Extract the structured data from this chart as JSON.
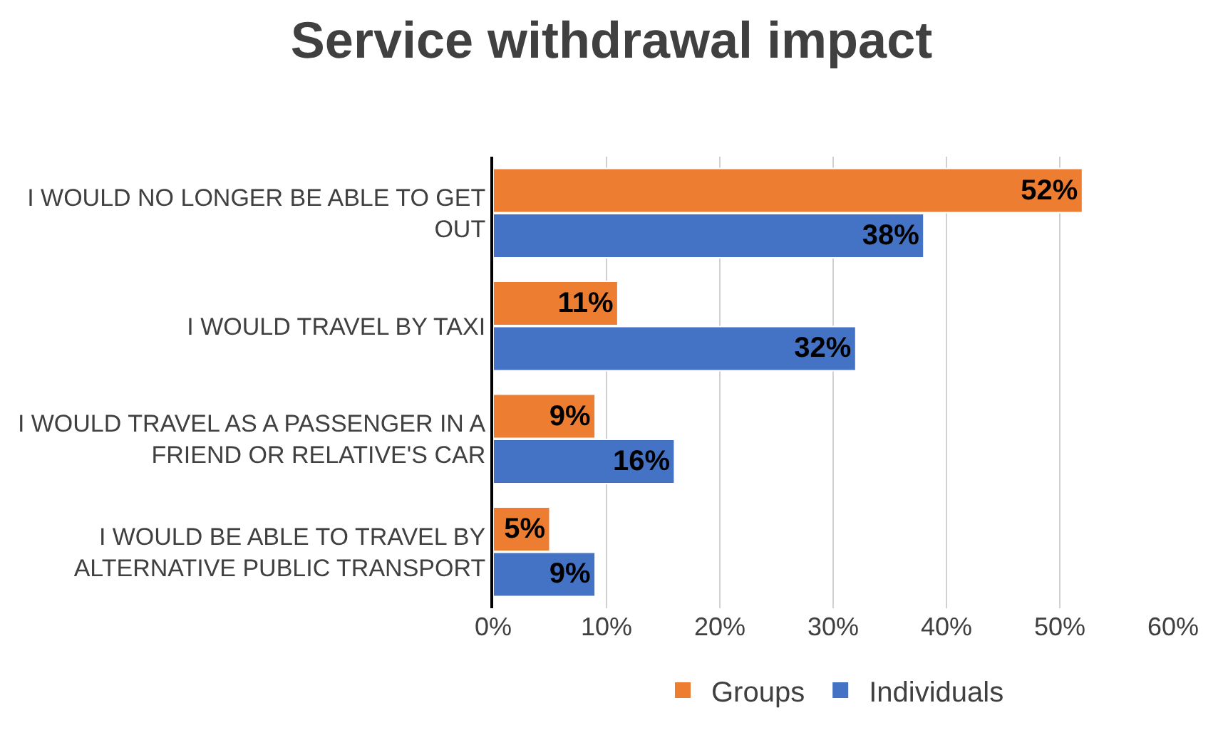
{
  "chart_data": {
    "type": "bar",
    "orientation": "horizontal",
    "title": "Service withdrawal impact",
    "categories": [
      "I WOULD NO LONGER BE ABLE TO GET OUT",
      "I WOULD TRAVEL BY TAXI",
      "I WOULD TRAVEL AS A PASSENGER IN A FRIEND OR RELATIVE'S CAR",
      "I WOULD BE ABLE TO TRAVEL BY ALTERNATIVE PUBLIC TRANSPORT"
    ],
    "series": [
      {
        "name": "Groups",
        "color": "#ed7d31",
        "values": [
          52,
          11,
          9,
          5
        ],
        "value_labels": [
          "52%",
          "11%",
          "9%",
          "5%"
        ]
      },
      {
        "name": "Individuals",
        "color": "#4472c4",
        "values": [
          38,
          32,
          16,
          9
        ],
        "value_labels": [
          "38%",
          "32%",
          "16%",
          "9%"
        ]
      }
    ],
    "xlim": [
      0,
      60
    ],
    "xticks": [
      {
        "value": 0,
        "label": "0%"
      },
      {
        "value": 10,
        "label": "10%"
      },
      {
        "value": 20,
        "label": "20%"
      },
      {
        "value": 30,
        "label": "30%"
      },
      {
        "value": 40,
        "label": "40%"
      },
      {
        "value": 50,
        "label": "50%"
      },
      {
        "value": 60,
        "label": "60%"
      }
    ],
    "grid": "x",
    "legend": "bottom"
  }
}
